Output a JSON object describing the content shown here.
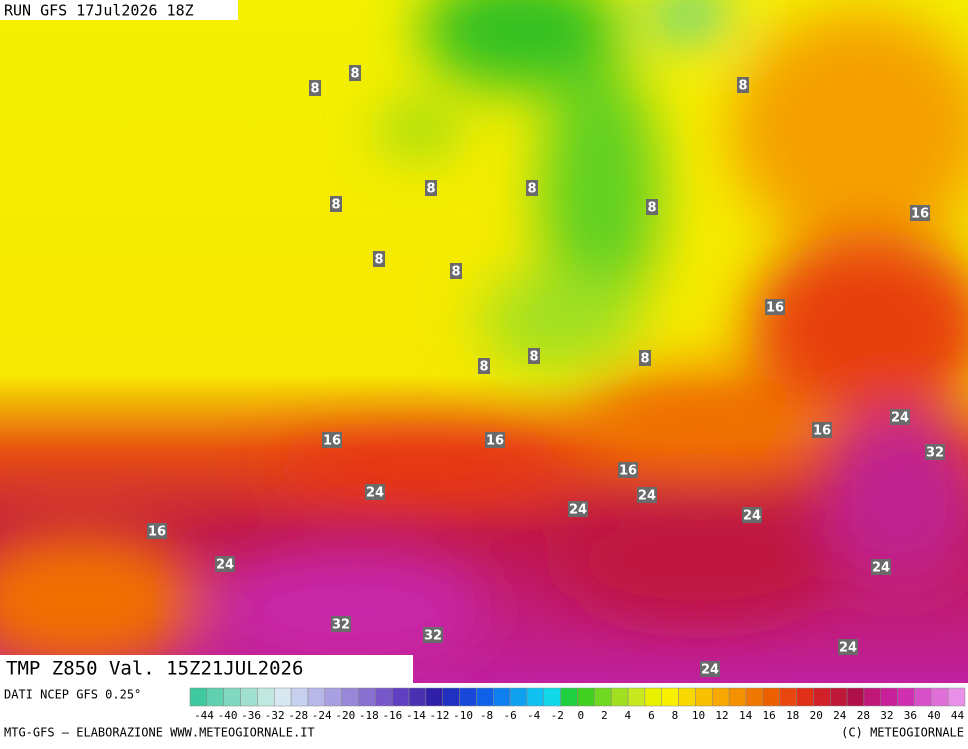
{
  "header": {
    "run": "RUN GFS 17Jul2026 18Z"
  },
  "footer": {
    "title": "TMP Z850 Val. 15Z21JUL2026",
    "source": "DATI NCEP GFS 0.25°",
    "credit_left": "MTG-GFS — ELABORAZIONE WWW.METEOGIORNALE.IT",
    "credit_right": "(C) METEOGIORNALE"
  },
  "colorbar": {
    "labels": [
      -44,
      -40,
      -36,
      -32,
      -28,
      -24,
      -20,
      -18,
      -16,
      -14,
      -12,
      -10,
      -8,
      -6,
      -4,
      -2,
      0,
      2,
      4,
      6,
      8,
      10,
      12,
      14,
      16,
      18,
      20,
      24,
      28,
      32,
      36,
      40,
      44
    ],
    "colors": [
      "#40c8a0",
      "#60d0b0",
      "#80d8c0",
      "#a0e0d0",
      "#c0e8e0",
      "#d8e8f0",
      "#c8d0f0",
      "#b8b8e8",
      "#a8a0e0",
      "#9888d8",
      "#8870d0",
      "#7858c8",
      "#6040c0",
      "#4830b0",
      "#3020a8",
      "#2030c0",
      "#1848d8",
      "#1060e8",
      "#1080f0",
      "#10a0f0",
      "#10c0f0",
      "#10d8e8",
      "#20d040",
      "#40d020",
      "#70d820",
      "#a0e020",
      "#c8e820",
      "#e8f000",
      "#f8f000",
      "#f8d800",
      "#f8c000",
      "#f8a800",
      "#f59000",
      "#f07800",
      "#ec6000",
      "#e84810",
      "#e03018",
      "#d02028",
      "#c01838",
      "#b01048",
      "#c01878",
      "#c82098",
      "#d030b0",
      "#d850c8",
      "#e070d8",
      "#e890e8"
    ]
  },
  "contour_labels": [
    8,
    8,
    8,
    8,
    8,
    8,
    8,
    8,
    8,
    8,
    8,
    8,
    16,
    16,
    16,
    16,
    16,
    16,
    16,
    24,
    24,
    24,
    24,
    24,
    24,
    24,
    24,
    24,
    32,
    32,
    32
  ]
}
